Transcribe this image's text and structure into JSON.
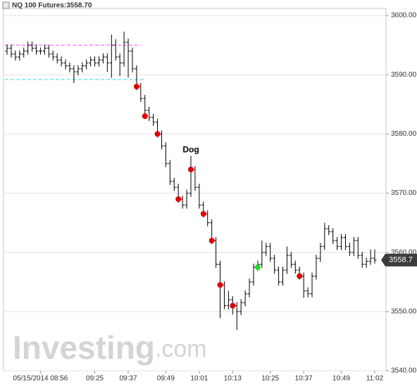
{
  "chart_data": {
    "type": "ohlc",
    "title": "NQ 100 Futures:3558.70",
    "categories": [
      null,
      null,
      null,
      null,
      null,
      null,
      null,
      null,
      "05/15/2014 08:56",
      null,
      null,
      null,
      null,
      null,
      null,
      null,
      null,
      null,
      null,
      null,
      null,
      "09:25",
      null,
      null,
      null,
      null,
      null,
      null,
      null,
      "09:37",
      null,
      null,
      null,
      null,
      null,
      null,
      null,
      null,
      "09:49",
      null,
      null,
      null,
      null,
      null,
      null,
      null,
      "10:01",
      null,
      null,
      null,
      null,
      null,
      null,
      null,
      "10:13",
      null,
      null,
      null,
      null,
      null,
      null,
      null,
      null,
      "10:25",
      null,
      null,
      null,
      null,
      null,
      null,
      null,
      "10:37",
      null,
      null,
      null,
      null,
      null,
      null,
      null,
      null,
      "10:49",
      null,
      null,
      null,
      null,
      null,
      null,
      null,
      "11:02"
    ],
    "open": [
      3594,
      3594.5,
      3593.5,
      3593,
      3593.5,
      3594,
      3595,
      3594.5,
      3594,
      3594,
      3594.5,
      3593.5,
      3593,
      3592.5,
      3592,
      3591.5,
      3591,
      3590.5,
      3591,
      3591.5,
      3592,
      3592.5,
      3592,
      3592.5,
      3593,
      3592,
      3595,
      3593,
      3592,
      3595.5,
      3594,
      3591,
      3588,
      3586,
      3584,
      3582.8,
      3582,
      3580,
      3578,
      3575,
      3572,
      3571,
      3569,
      3568,
      3570,
      3574,
      3571,
      3568,
      3566.5,
      3565,
      3562,
      3558,
      3554.5,
      3551,
      3552,
      3551,
      3550,
      3551.5,
      3553,
      3555,
      3557.5,
      3558,
      3560,
      3561,
      3559,
      3557,
      3555,
      3557,
      3559.5,
      3558,
      3557,
      3556,
      3553.5,
      3553,
      3556,
      3559,
      3561,
      3564,
      3563.5,
      3562,
      3561,
      3562.5,
      3561,
      3560,
      3562,
      3559.5,
      3558,
      3558.5,
      3559
    ],
    "high": [
      3595.1,
      3595.1,
      3594.1,
      3594.1,
      3594.6,
      3595.6,
      3595.6,
      3595.1,
      3594.6,
      3595.1,
      3595.1,
      3594.1,
      3593.6,
      3593.1,
      3592.6,
      3592.1,
      3591.6,
      3591.6,
      3592.1,
      3592.6,
      3593.1,
      3593.1,
      3593.1,
      3593.6,
      3593.6,
      3596.8,
      3596,
      3593.6,
      3597.3,
      3596.1,
      3594.6,
      3591.6,
      3588.6,
      3586.6,
      3584.6,
      3583.4,
      3582.6,
      3580.6,
      3578.6,
      3575.6,
      3572.6,
      3571.6,
      3569.6,
      3570.6,
      3576.3,
      3574.6,
      3571.6,
      3568.6,
      3567.1,
      3565.6,
      3562.6,
      3558.6,
      3555.1,
      3553.5,
      3552.6,
      3551.6,
      3552.1,
      3553.6,
      3555.6,
      3558.1,
      3558.6,
      3562,
      3561.6,
      3561.6,
      3559.6,
      3557.6,
      3557.6,
      3561,
      3560.1,
      3558.6,
      3557.6,
      3556.6,
      3554.1,
      3556.6,
      3559.6,
      3561.6,
      3565,
      3564.6,
      3564.1,
      3562.6,
      3563.1,
      3563.1,
      3561.6,
      3562.6,
      3562.6,
      3560.1,
      3559.1,
      3560.5,
      3560.5
    ],
    "low": [
      3593.4,
      3592.9,
      3592.4,
      3592.4,
      3592.9,
      3593.4,
      3593.9,
      3593.4,
      3593.4,
      3593.4,
      3592.9,
      3592.4,
      3591.9,
      3591.4,
      3590.9,
      3590.4,
      3588.6,
      3589.9,
      3590.4,
      3590.9,
      3591.4,
      3591.4,
      3591.4,
      3591.9,
      3590.5,
      3589.5,
      3592.4,
      3589.8,
      3591.4,
      3589.5,
      3590.4,
      3587.4,
      3585.4,
      3583.4,
      3582.2,
      3581.4,
      3579.4,
      3577.4,
      3574.4,
      3571.4,
      3570.4,
      3568.4,
      3567.4,
      3567.4,
      3569.4,
      3570.4,
      3567.4,
      3565.9,
      3564.4,
      3561.4,
      3557.4,
      3548.9,
      3550.4,
      3550.4,
      3549.5,
      3546.9,
      3549.4,
      3550.9,
      3552.4,
      3554.4,
      3556.9,
      3557.4,
      3559.4,
      3558.4,
      3556.4,
      3554.4,
      3554.4,
      3556.4,
      3557.4,
      3556.4,
      3555.4,
      3552.3,
      3552.4,
      3552.4,
      3555.4,
      3558.4,
      3560.4,
      3562.9,
      3561.4,
      3560.4,
      3560.4,
      3560.4,
      3559.4,
      3559.4,
      3558.9,
      3557.4,
      3557.4,
      3557.9,
      3558.1
    ],
    "close": [
      3594.5,
      3593.5,
      3593,
      3593.5,
      3594,
      3595,
      3594.5,
      3594,
      3594,
      3594.5,
      3593.5,
      3593,
      3592.5,
      3592,
      3591.5,
      3591,
      3590.5,
      3591,
      3591.5,
      3592,
      3592.5,
      3592,
      3592.5,
      3593,
      3592,
      3595,
      3593,
      3592,
      3595.5,
      3594,
      3591,
      3588,
      3586,
      3584,
      3582.8,
      3582,
      3580,
      3578,
      3575,
      3572,
      3571,
      3569,
      3568,
      3570,
      3574,
      3571,
      3568,
      3566.5,
      3565,
      3562,
      3558,
      3554.5,
      3551,
      3552,
      3551,
      3550,
      3551.5,
      3553,
      3555,
      3557.5,
      3558,
      3560,
      3561,
      3559,
      3557,
      3555,
      3557,
      3559.5,
      3558,
      3557,
      3556,
      3553.5,
      3553,
      3556,
      3559,
      3561,
      3564,
      3563.5,
      3562,
      3561,
      3562.5,
      3561,
      3560,
      3562,
      3559.5,
      3558,
      3558.5,
      3559,
      3558.7
    ],
    "color": "#000000",
    "markers": {
      "x": [
        31,
        33,
        36,
        41,
        44,
        47,
        49,
        51,
        54,
        60,
        70
      ],
      "values": [
        3588,
        3583,
        3580,
        3569,
        3574,
        3566.5,
        3562,
        3554.5,
        3551,
        3557.5,
        3556
      ],
      "colors": [
        "#e00000",
        "#e00000",
        "#e00000",
        "#e00000",
        "#e00000",
        "#e00000",
        "#e00000",
        "#e00000",
        "#e00000",
        "#22dd22",
        "#e00000"
      ]
    },
    "levels": [
      {
        "value": 3595,
        "end": 32,
        "color": "#ff44ff"
      },
      {
        "value": 3589.2,
        "end": 33,
        "color": "#33dddd"
      }
    ],
    "annotations": [
      {
        "text": "Dog",
        "x": 44,
        "y": 3577.3
      }
    ],
    "last_price": 3558.7,
    "ylim": [
      3540,
      3601.2
    ],
    "yticks": [
      {
        "value": 3540,
        "label": "3540.00"
      },
      {
        "value": 3550,
        "label": "3550.00"
      },
      {
        "value": 3560,
        "label": "3560.00"
      },
      {
        "value": 3570,
        "label": "3570.00"
      },
      {
        "value": 3580,
        "label": "3580.00"
      },
      {
        "value": 3590,
        "label": "3590.00"
      },
      {
        "value": 3600,
        "label": "3600.00"
      }
    ],
    "grid": true,
    "watermark": [
      "Investing",
      ".com"
    ]
  }
}
